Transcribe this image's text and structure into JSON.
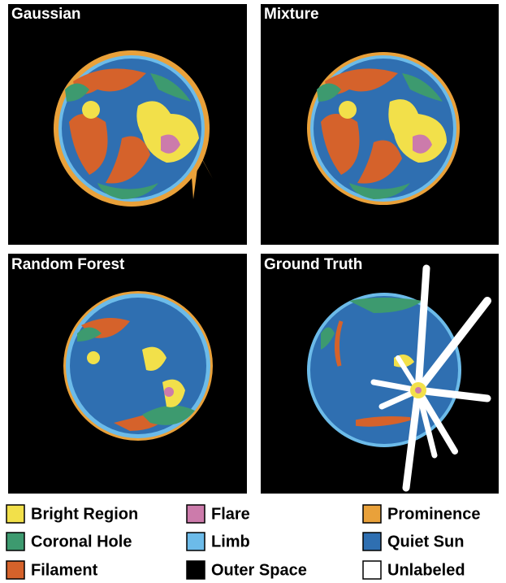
{
  "panels": [
    {
      "title": "Gaussian"
    },
    {
      "title": "Mixture"
    },
    {
      "title": "Random Forest"
    },
    {
      "title": "Ground Truth"
    }
  ],
  "legend": [
    {
      "label": "Bright Region",
      "color": "#f2e04a"
    },
    {
      "label": "Coronal Hole",
      "color": "#3d9a6f"
    },
    {
      "label": "Filament",
      "color": "#d5622b"
    },
    {
      "label": "Flare",
      "color": "#cc7bab"
    },
    {
      "label": "Limb",
      "color": "#6cbbe9"
    },
    {
      "label": "Outer Space",
      "color": "#000000"
    },
    {
      "label": "Prominence",
      "color": "#e9a13a"
    },
    {
      "label": "Quiet Sun",
      "color": "#2f6fb1"
    },
    {
      "label": "Unlabeled",
      "color": "#ffffff"
    }
  ]
}
